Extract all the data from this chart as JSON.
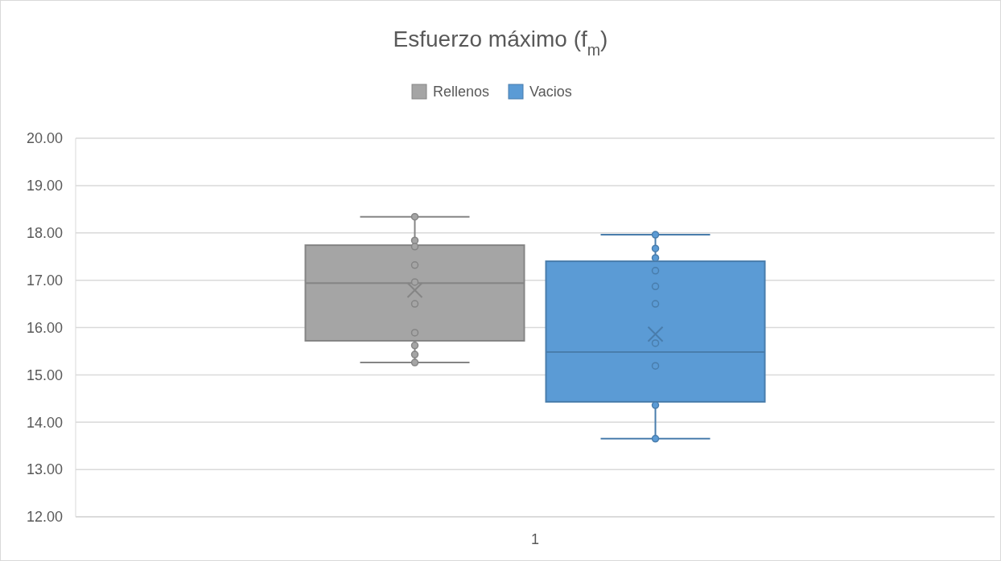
{
  "chart_data": {
    "type": "box",
    "title": "Esfuerzo máximo (f$_{m}$)",
    "categories": [
      "1"
    ],
    "legend": "top",
    "grid": "y",
    "marker": "circle",
    "ylim": [
      12,
      20
    ],
    "yticks": [
      {
        "value": 12,
        "label": "12.00"
      },
      {
        "value": 13,
        "label": "13.00"
      },
      {
        "value": 14,
        "label": "14.00"
      },
      {
        "value": 15,
        "label": "15.00"
      },
      {
        "value": 16,
        "label": "16.00"
      },
      {
        "value": 17,
        "label": "17.00"
      },
      {
        "value": 18,
        "label": "18.00"
      },
      {
        "value": 19,
        "label": "19.00"
      },
      {
        "value": 20,
        "label": "20.00"
      }
    ],
    "series": [
      {
        "name": "Rellenos",
        "color": "#a5a5a5",
        "boxes": [
          {
            "low": 15.26,
            "q1": 15.72,
            "median": 16.94,
            "q3": 17.74,
            "high": 18.34,
            "mean": 16.79
          }
        ]
      },
      {
        "name": "Vacios",
        "color": "#5b9bd5",
        "boxes": [
          {
            "low": 13.65,
            "q1": 14.43,
            "median": 15.48,
            "q3": 17.4,
            "high": 17.96,
            "mean": 15.86
          }
        ]
      },
      {
        "color": "#a5a5a5",
        "type": "scatter",
        "x": [
          "1",
          "1",
          "1",
          "1",
          "1",
          "1",
          "1",
          "1",
          "1",
          "1"
        ],
        "values": [
          18.34,
          17.84,
          17.71,
          17.32,
          16.96,
          16.5,
          15.89,
          15.62,
          15.43,
          15.26
        ]
      },
      {
        "color": "#5b9bd5",
        "type": "scatter",
        "x": [
          "1",
          "1",
          "1",
          "1",
          "1",
          "1",
          "1",
          "1",
          "1",
          "1"
        ],
        "values": [
          17.96,
          17.67,
          17.47,
          17.2,
          16.87,
          16.5,
          15.67,
          15.19,
          14.36,
          13.65
        ]
      }
    ]
  }
}
